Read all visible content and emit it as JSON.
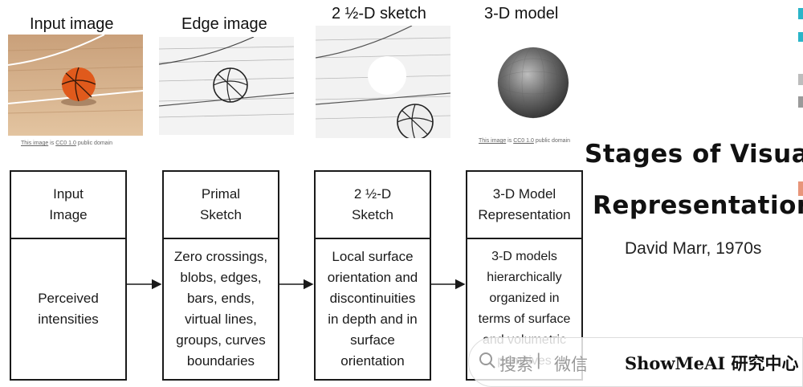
{
  "images": [
    {
      "title": "Input image",
      "credit": {
        "link1": "This image",
        "mid": " is ",
        "link2": "CC0 1.0",
        "tail": " public domain"
      }
    },
    {
      "title": "Edge image"
    },
    {
      "title": "2 ½-D sketch"
    },
    {
      "title": "3-D model",
      "credit": {
        "link1": "This image",
        "mid": " is ",
        "link2": "CC0 1.0",
        "tail": " public domain"
      }
    }
  ],
  "stages": [
    {
      "head": "Input\nImage",
      "body": "Perceived\nintensities"
    },
    {
      "head": "Primal\nSketch",
      "body": "Zero crossings,\nblobs, edges,\nbars, ends,\nvirtual lines,\ngroups, curves\nboundaries"
    },
    {
      "head": "2 ½-D\nSketch",
      "body": "Local surface\norientation and\ndiscontinuities\nin depth and in\nsurface\norientation"
    },
    {
      "head": "3-D Model\nRepresentation",
      "body": "3-D models\nhierarchically\norganized in\nterms of surface\nand volumetric\nprimitives"
    }
  ],
  "side": {
    "title_line1": "Stages of Visual",
    "title_line2": "Representation",
    "author": "David Marr, 1970s"
  },
  "watermark": {
    "search": "搜索",
    "divider": "|",
    "wechat": "微信",
    "brand": "ShowMeAI 研究中心"
  },
  "colors": {
    "ball": "#e05a1c",
    "floor": "#d9b38c",
    "sphere": "#666666",
    "accent_teal": "#2bb5c8"
  }
}
